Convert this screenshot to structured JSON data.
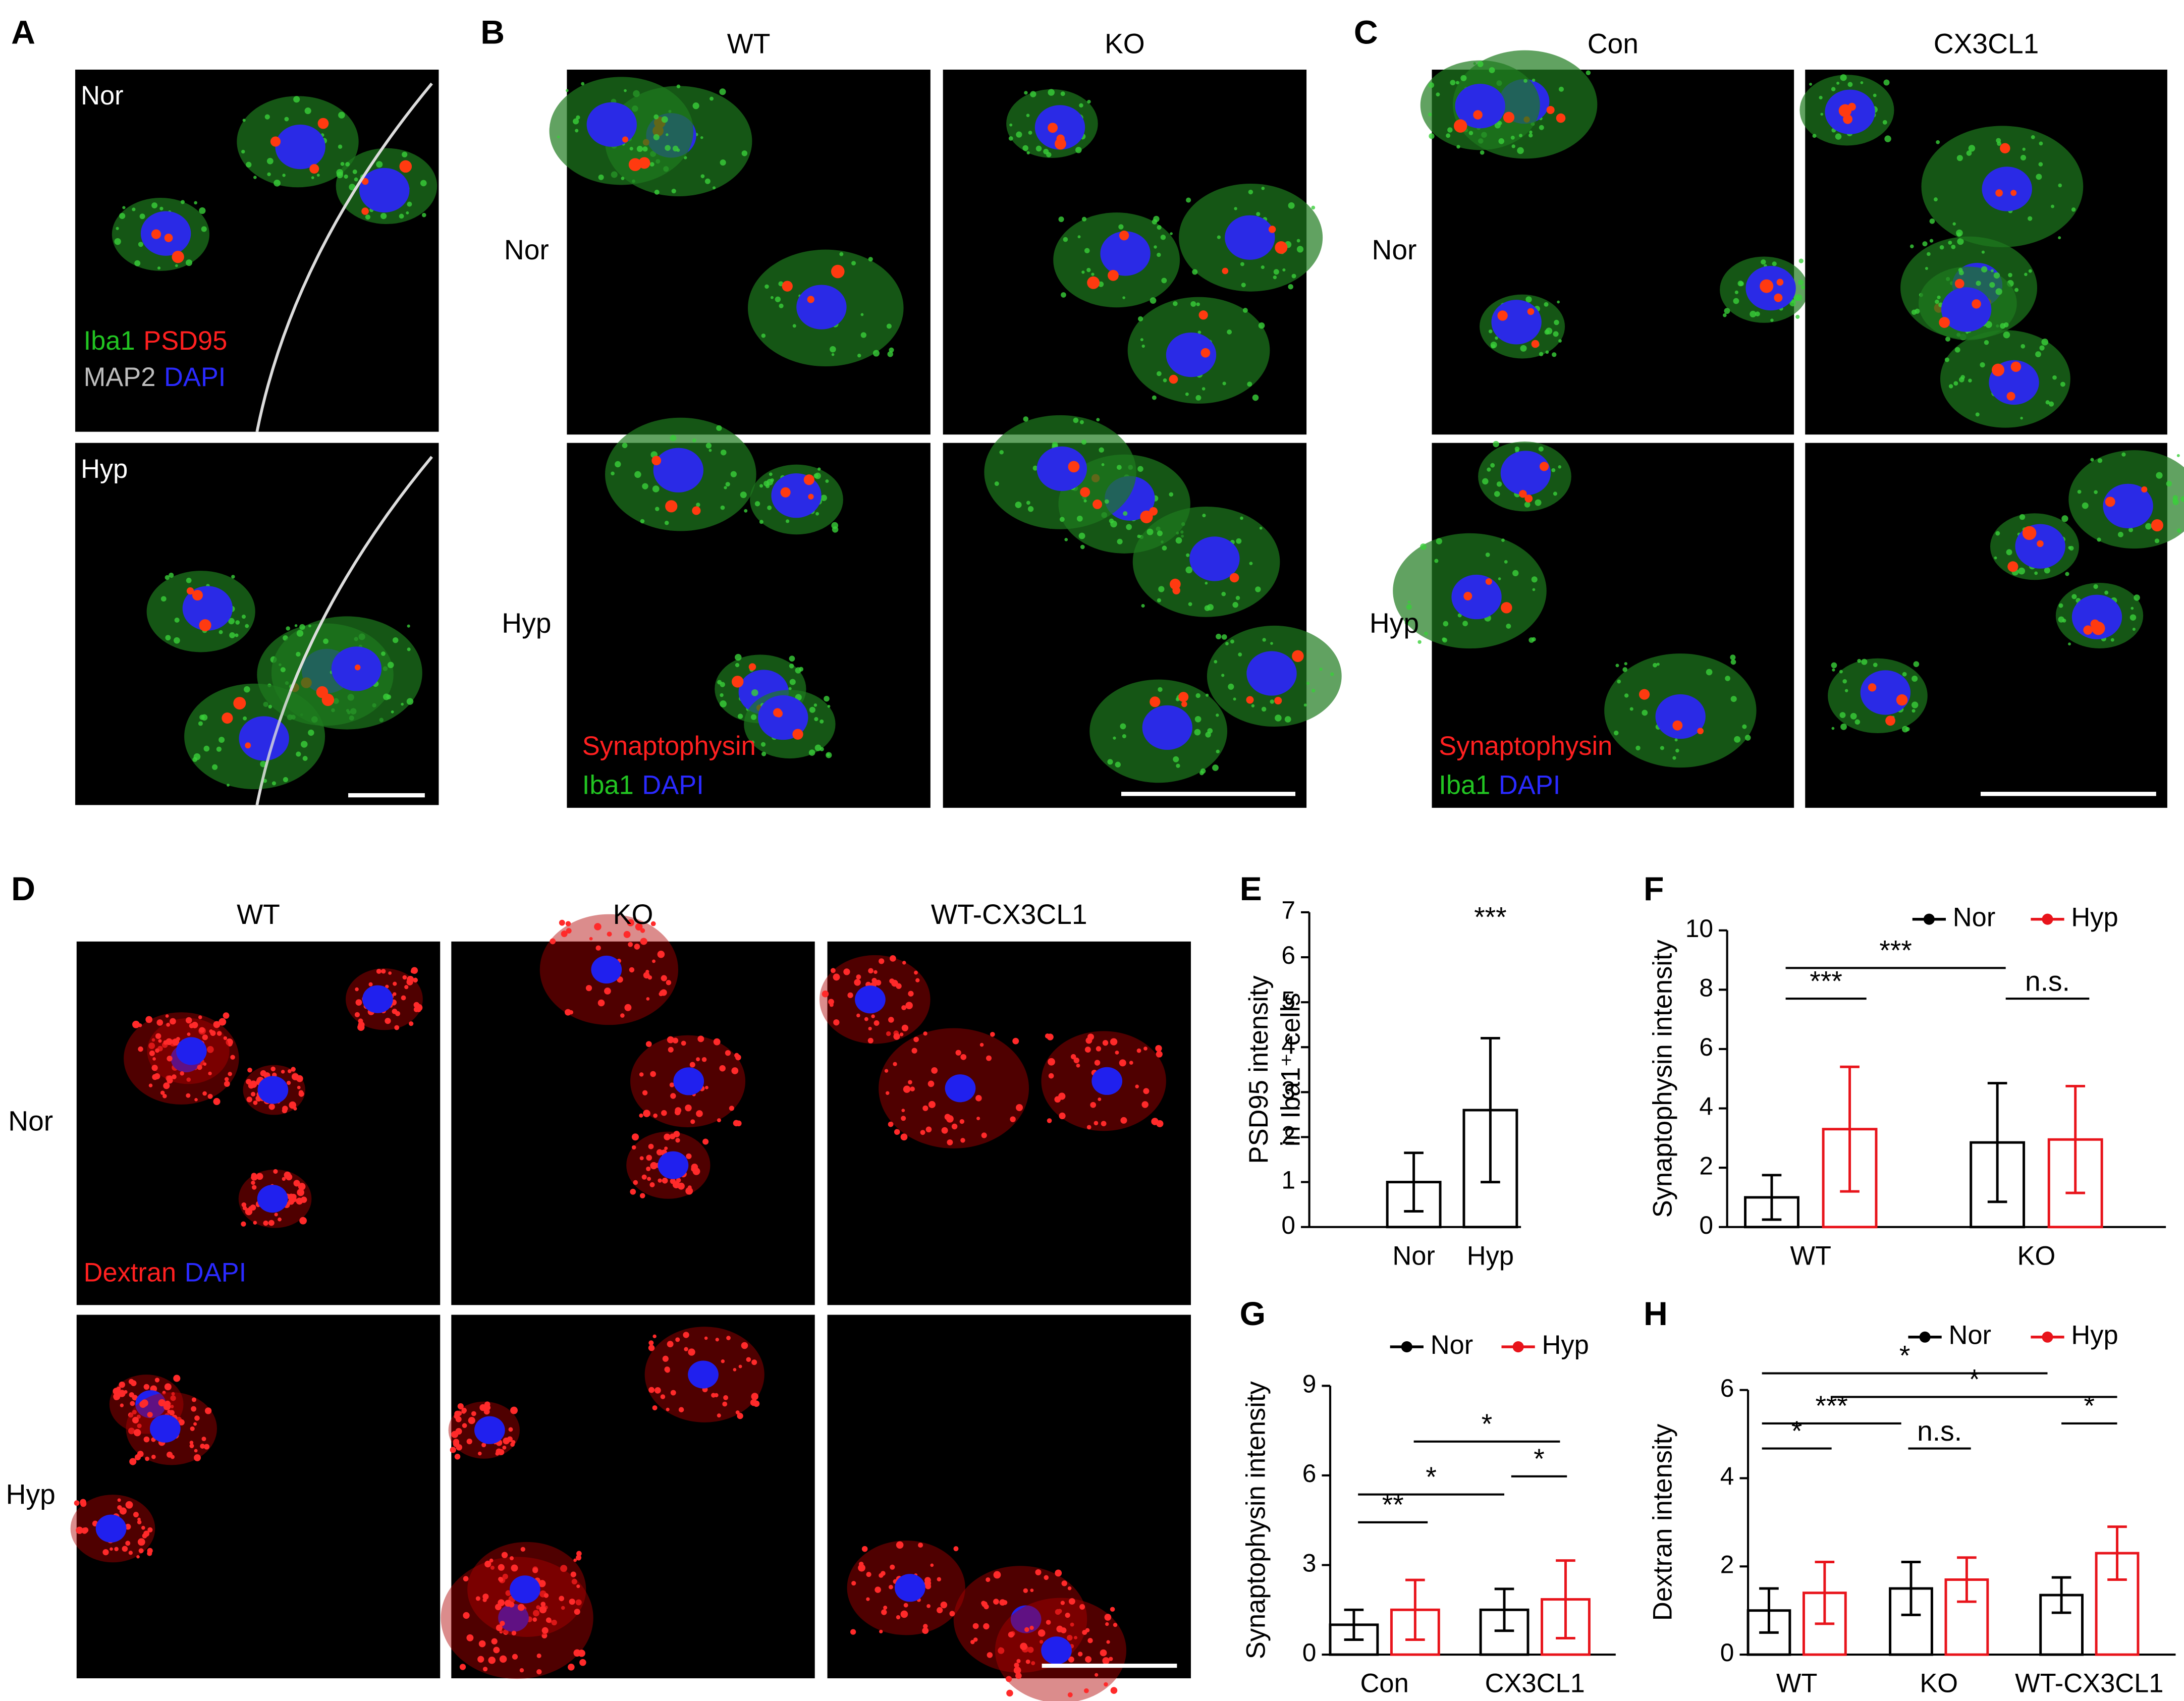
{
  "panel_letters": [
    "A",
    "B",
    "C",
    "D",
    "E",
    "F",
    "G",
    "H"
  ],
  "images": {
    "A": {
      "rows": [
        "Nor",
        "Hyp"
      ],
      "stain": [
        [
          {
            "text": "Iba1",
            "color": "#22c422"
          },
          {
            "text": "PSD95",
            "color": "#ff2020"
          }
        ],
        [
          {
            "text": "MAP2",
            "color": "#bdbdbd"
          },
          {
            "text": "DAPI",
            "color": "#2a2aff"
          }
        ]
      ]
    },
    "B": {
      "columns": [
        "WT",
        "KO"
      ],
      "rows": [
        "Nor",
        "Hyp"
      ],
      "stain": [
        [
          {
            "text": "Synaptophysin",
            "color": "#ff2020"
          }
        ],
        [
          {
            "text": "Iba1",
            "color": "#22c422"
          },
          {
            "text": "DAPI",
            "color": "#2a2aff"
          }
        ]
      ]
    },
    "C": {
      "columns": [
        "Con",
        "CX3CL1"
      ],
      "rows": [
        "Nor",
        "Hyp"
      ],
      "stain": [
        [
          {
            "text": "Synaptophysin",
            "color": "#ff2020"
          }
        ],
        [
          {
            "text": "Iba1",
            "color": "#22c422"
          },
          {
            "text": "DAPI",
            "color": "#2a2aff"
          }
        ]
      ]
    },
    "D": {
      "columns": [
        "WT",
        "KO",
        "WT-CX3CL1"
      ],
      "rows": [
        "Nor",
        "Hyp"
      ],
      "stain": [
        [
          {
            "text": "Dextran",
            "color": "#ff2020"
          },
          {
            "text": "DAPI",
            "color": "#2a2aff"
          }
        ]
      ]
    }
  },
  "chart_data": [
    {
      "type": "bar",
      "y_label": [
        "PSD95 intensity",
        "in Iba1⁺ cells"
      ],
      "categories": [
        "Nor",
        "Hyp"
      ],
      "values": [
        1.0,
        2.6
      ],
      "errors": [
        0.65,
        1.6
      ],
      "color": "#000000",
      "ylim": [
        0,
        7
      ],
      "yticks": [
        0,
        1,
        2,
        3,
        4,
        5,
        6,
        7
      ],
      "annotations": [
        "***"
      ]
    },
    {
      "type": "grouped_bar",
      "y_label": "Synaptophysin intensity",
      "categories": [
        "WT",
        "KO"
      ],
      "series": [
        {
          "name": "Nor",
          "color": "#000000",
          "values": [
            1.0,
            2.85
          ],
          "errors": [
            0.75,
            2.0
          ]
        },
        {
          "name": "Hyp",
          "color": "#e8141b",
          "values": [
            3.3,
            2.95
          ],
          "errors": [
            2.1,
            1.8
          ]
        }
      ],
      "ylim": [
        0,
        10
      ],
      "yticks": [
        0,
        2,
        4,
        6,
        8,
        10
      ],
      "annotations": [
        "***",
        "***",
        "n.s."
      ]
    },
    {
      "type": "grouped_bar",
      "y_label": "Synaptophysin intensity",
      "categories": [
        "Con",
        "CX3CL1"
      ],
      "series": [
        {
          "name": "Nor",
          "color": "#000000",
          "values": [
            1.0,
            1.5
          ],
          "errors": [
            0.5,
            0.7
          ]
        },
        {
          "name": "Hyp",
          "color": "#e8141b",
          "values": [
            1.5,
            1.85
          ],
          "errors": [
            1.0,
            1.3
          ]
        }
      ],
      "ylim": [
        0,
        9
      ],
      "yticks": [
        0,
        3,
        6,
        9
      ],
      "annotations": [
        "*",
        "**",
        "*",
        "*"
      ]
    },
    {
      "type": "grouped_bar",
      "y_label": "Dextran intensity",
      "categories": [
        "WT",
        "KO",
        "WT-CX3CL1"
      ],
      "series": [
        {
          "name": "Nor",
          "color": "#000000",
          "values": [
            1.0,
            1.5,
            1.35
          ],
          "errors": [
            0.5,
            0.6,
            0.4
          ]
        },
        {
          "name": "Hyp",
          "color": "#e8141b",
          "values": [
            1.4,
            1.7,
            2.3
          ],
          "errors": [
            0.7,
            0.5,
            0.6
          ]
        }
      ],
      "ylim": [
        0,
        6
      ],
      "yticks": [
        0,
        2,
        4,
        6
      ],
      "annotations": [
        "*",
        "*",
        "*",
        "***",
        "n.s.",
        "*"
      ]
    }
  ]
}
